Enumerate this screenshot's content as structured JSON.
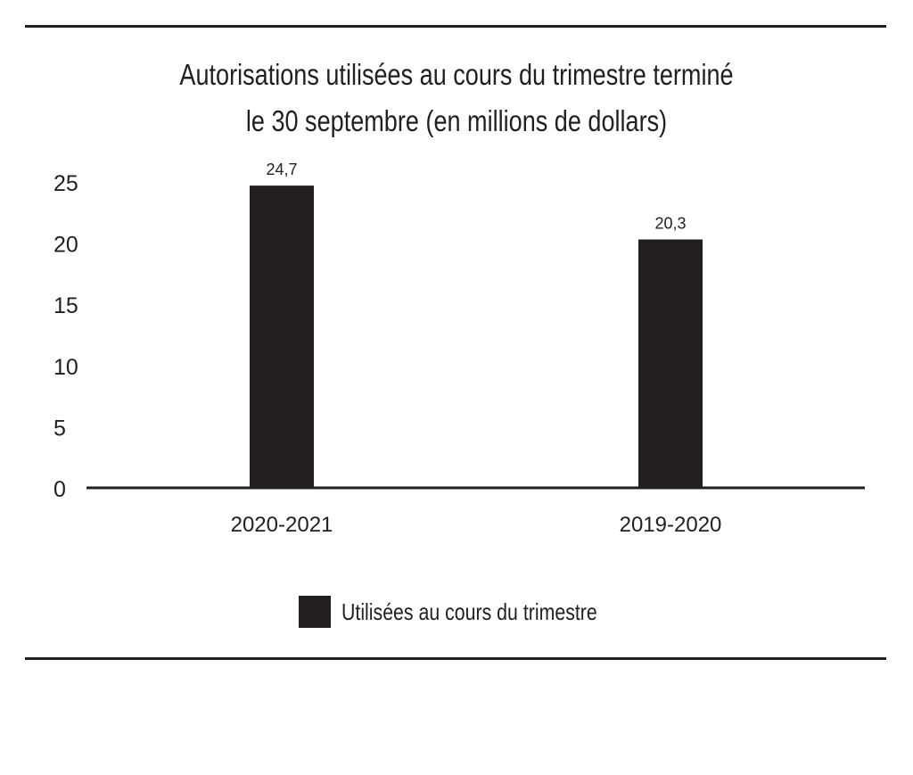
{
  "chart_data": {
    "type": "bar",
    "title": "Autorisations utilisées au cours du trimestre terminé le 30 septembre (en millions de dollars)",
    "title_lines": [
      "Autorisations utilisées au cours du trimestre terminé",
      "le 30 septembre (en millions de dollars)"
    ],
    "categories": [
      "2020-2021",
      "2019-2020"
    ],
    "series": [
      {
        "name": "Utilisées au cours du trimestre",
        "values": [
          24.7,
          20.3
        ],
        "labels": [
          "24,7",
          "20,3"
        ],
        "color": "#231f20"
      }
    ],
    "ylim": [
      0,
      25
    ],
    "yticks": [
      0,
      5,
      10,
      15,
      20,
      25
    ],
    "grid": false,
    "legend": "bottom"
  }
}
